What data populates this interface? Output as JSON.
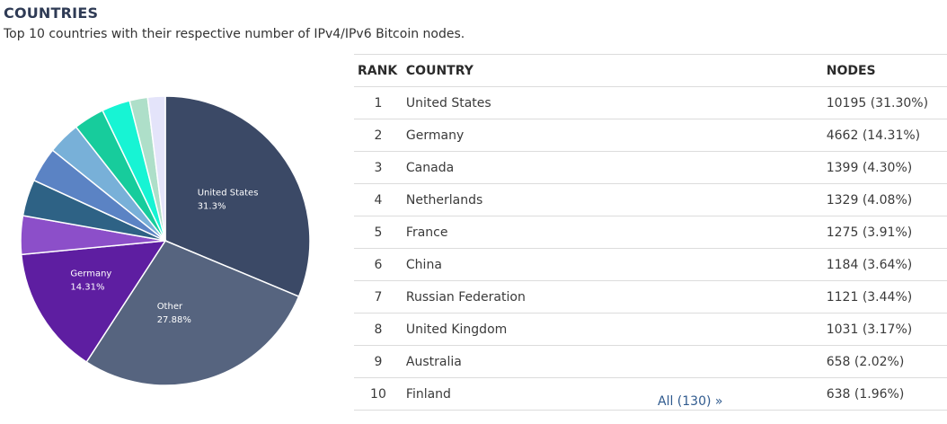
{
  "section": {
    "title": "COUNTRIES",
    "subtitle": "Top 10 countries with their respective number of IPv4/IPv6 Bitcoin nodes."
  },
  "table": {
    "headers": {
      "rank": "RANK",
      "country": "COUNTRY",
      "nodes": "NODES"
    },
    "rows": [
      {
        "rank": "1",
        "country": "United States",
        "nodes": "10195 (31.30%)"
      },
      {
        "rank": "2",
        "country": "Germany",
        "nodes": "4662 (14.31%)"
      },
      {
        "rank": "3",
        "country": "Canada",
        "nodes": "1399 (4.30%)"
      },
      {
        "rank": "4",
        "country": "Netherlands",
        "nodes": "1329 (4.08%)"
      },
      {
        "rank": "5",
        "country": "France",
        "nodes": "1275 (3.91%)"
      },
      {
        "rank": "6",
        "country": "China",
        "nodes": "1184 (3.64%)"
      },
      {
        "rank": "7",
        "country": "Russian Federation",
        "nodes": "1121 (3.44%)"
      },
      {
        "rank": "8",
        "country": "United Kingdom",
        "nodes": "1031 (3.17%)"
      },
      {
        "rank": "9",
        "country": "Australia",
        "nodes": "658 (2.02%)"
      },
      {
        "rank": "10",
        "country": "Finland",
        "nodes": "638 (1.96%)"
      }
    ]
  },
  "all_link": "All (130) »",
  "chart_data": {
    "type": "pie",
    "slices": [
      {
        "name": "United States",
        "value": 31.3,
        "color": "#3b4966",
        "label": "United States",
        "pct_label": "31.3%"
      },
      {
        "name": "Other",
        "value": 27.88,
        "color": "#56647f",
        "label": "Other",
        "pct_label": "27.88%"
      },
      {
        "name": "Germany",
        "value": 14.31,
        "color": "#5e1ea1",
        "label": "Germany",
        "pct_label": "14.31%"
      },
      {
        "name": "Canada",
        "value": 4.3,
        "color": "#8c4fc9"
      },
      {
        "name": "Netherlands",
        "value": 4.08,
        "color": "#2e6285"
      },
      {
        "name": "France",
        "value": 3.91,
        "color": "#5b83c4"
      },
      {
        "name": "China",
        "value": 3.64,
        "color": "#78b0d8"
      },
      {
        "name": "Russian Federation",
        "value": 3.44,
        "color": "#17cc9c"
      },
      {
        "name": "United Kingdom",
        "value": 3.17,
        "color": "#17f4d4"
      },
      {
        "name": "Australia",
        "value": 2.02,
        "color": "#aedfc9"
      },
      {
        "name": "Finland",
        "value": 1.96,
        "color": "#e4e4fa"
      }
    ]
  }
}
